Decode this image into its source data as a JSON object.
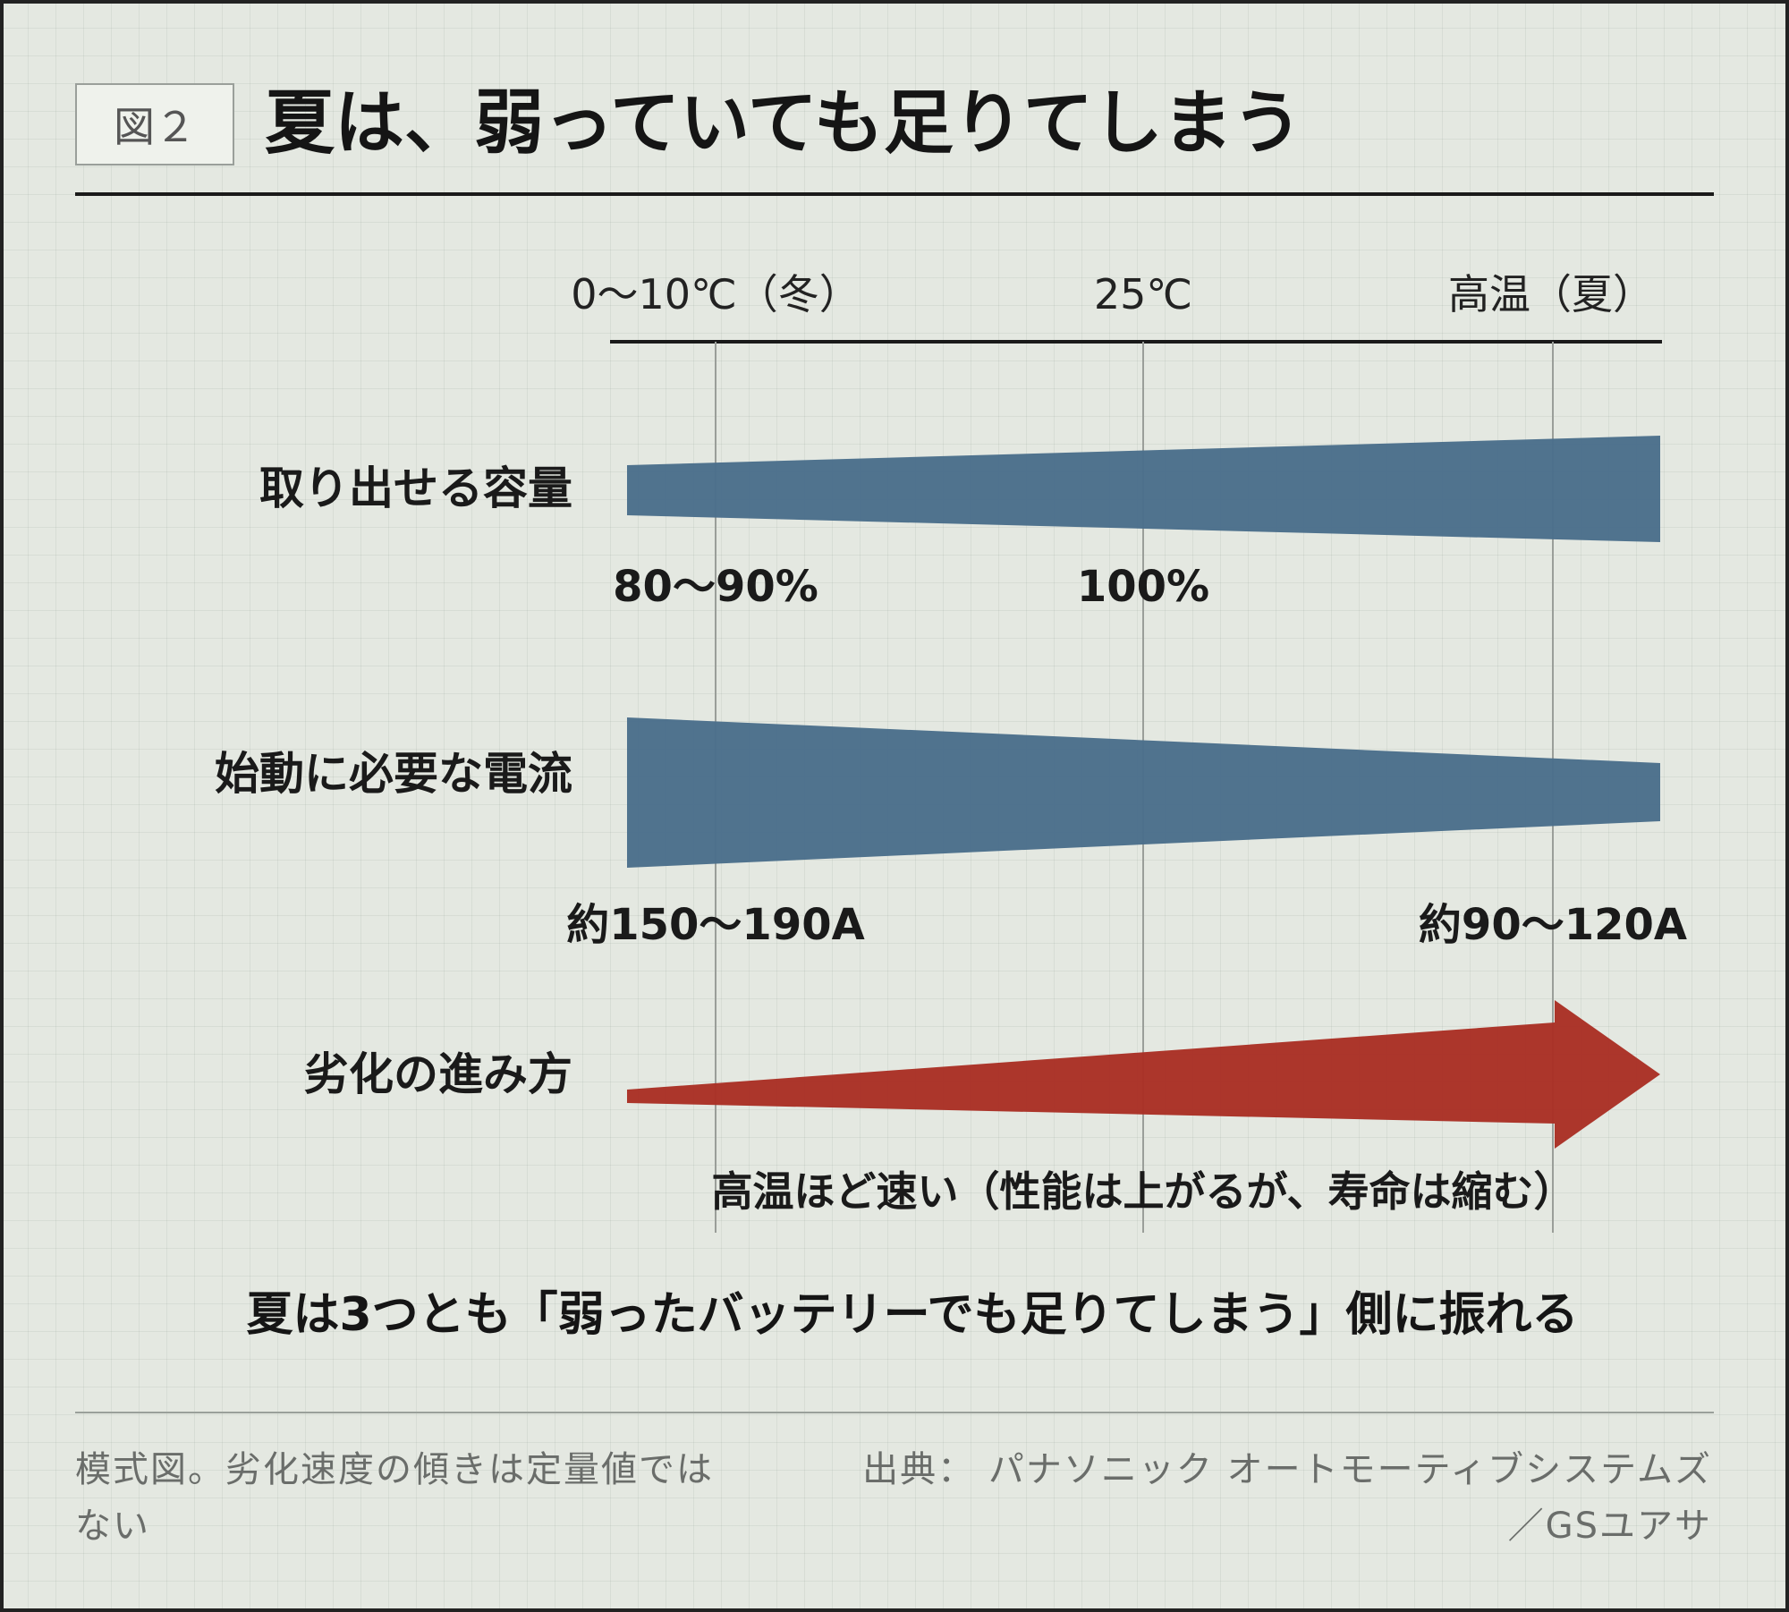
{
  "figure": {
    "badge": "図２",
    "title": "夏は、弱っていても足りてしまう"
  },
  "axis": {
    "labels": [
      "0〜10℃（冬）",
      "25℃",
      "高温（夏）"
    ]
  },
  "rows": [
    {
      "label": "取り出せる容量",
      "color": "#4a6e8b",
      "annotations": [
        "80〜90%",
        "100%"
      ]
    },
    {
      "label": "始動に必要な電流",
      "color": "#4a6e8b",
      "annotations": [
        "約150〜190A",
        "約90〜120A"
      ]
    },
    {
      "label": "劣化の進み方",
      "color": "#a92f25",
      "annotations": [
        "高温ほど速い（性能は上がるが、寿命は縮む）"
      ]
    }
  ],
  "conclusion": "夏は3つとも「弱ったバッテリーでも足りてしまう」側に振れる",
  "footer": {
    "note": "模式図。劣化速度の傾きは定量値ではない",
    "source_line1": "出典： パナソニック オートモーティブシステムズ",
    "source_line2": "／GSユアサ"
  }
}
